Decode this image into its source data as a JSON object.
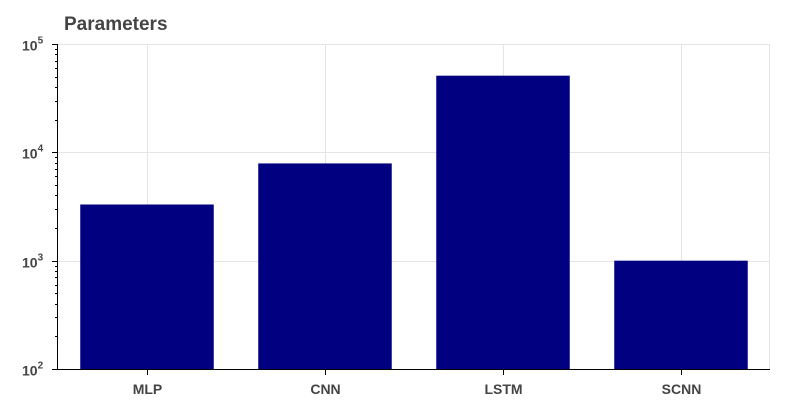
{
  "chart_data": {
    "type": "bar",
    "title": "Parameters",
    "xlabel": "",
    "ylabel": "",
    "yscale": "log",
    "ylim": [
      100,
      100000
    ],
    "categories": [
      "MLP",
      "CNN",
      "LSTM",
      "SCNN"
    ],
    "values": [
      3300,
      7900,
      51000,
      1000
    ],
    "yticks": [
      {
        "base": "10",
        "exp": "2",
        "value": 100
      },
      {
        "base": "10",
        "exp": "3",
        "value": 1000
      },
      {
        "base": "10",
        "exp": "4",
        "value": 10000
      },
      {
        "base": "10",
        "exp": "5",
        "value": 100000
      }
    ],
    "bar_color": "#000080",
    "grid": true,
    "legend": "none"
  }
}
